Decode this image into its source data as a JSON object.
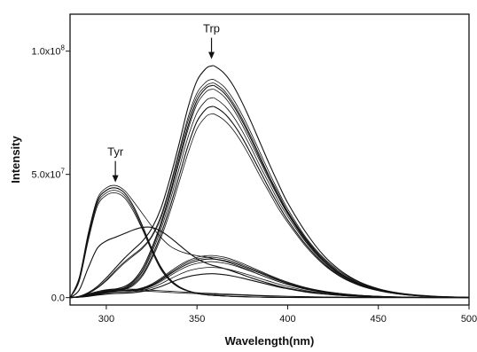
{
  "chart_data": {
    "type": "line",
    "title": "",
    "xlabel": "Wavelength(nm)",
    "ylabel": "Intensity",
    "xlim": [
      280,
      500
    ],
    "ylim": [
      -3000000,
      115000000
    ],
    "grid": false,
    "legend": "none",
    "x_ticks": [
      {
        "value": 300,
        "label": "300"
      },
      {
        "value": 350,
        "label": "350"
      },
      {
        "value": 400,
        "label": "400"
      },
      {
        "value": 450,
        "label": "450"
      },
      {
        "value": 500,
        "label": "500"
      }
    ],
    "y_ticks": [
      {
        "value": 0,
        "label": "0.0"
      },
      {
        "value": 50000000,
        "label": "5.0x10",
        "exp": "7"
      },
      {
        "value": 100000000,
        "label": "1.0x10",
        "exp": "8"
      }
    ],
    "x": [
      280,
      285,
      290,
      295,
      300,
      305,
      310,
      315,
      320,
      325,
      330,
      335,
      340,
      345,
      350,
      355,
      358,
      360,
      365,
      370,
      375,
      380,
      385,
      390,
      395,
      400,
      410,
      420,
      430,
      440,
      450,
      460,
      470,
      480,
      490,
      500
    ],
    "annotations": [
      {
        "text": "Tyr",
        "x": 305,
        "y": 45000000
      },
      {
        "text": "Trp",
        "x": 358,
        "y": 95000000
      }
    ],
    "series": [
      {
        "values": [
          0,
          500000,
          2000000,
          4500000,
          8000000,
          12000000,
          16000000,
          19500000,
          23000000,
          28000000,
          36000000,
          48000000,
          62000000,
          77000000,
          88000000,
          93000000,
          94000000,
          93800000,
          91000000,
          86000000,
          79000000,
          71000000,
          62500000,
          54000000,
          46000000,
          38500000,
          26500000,
          17000000,
          10500000,
          6200000,
          3600000,
          2000000,
          1100000,
          600000,
          300000,
          100000
        ]
      },
      {
        "values": [
          0,
          500000,
          1800000,
          4000000,
          7200000,
          11000000,
          14500000,
          17500000,
          20500000,
          25000000,
          33000000,
          45000000,
          59000000,
          73000000,
          83000000,
          87500000,
          88500000,
          88200000,
          85500000,
          80500000,
          74000000,
          66500000,
          58500000,
          50500000,
          43000000,
          36000000,
          24500000,
          16000000,
          10000000,
          6000000,
          3400000,
          1900000,
          1000000,
          550000,
          280000,
          100000
        ]
      },
      {
        "values": [
          0,
          400000,
          1700000,
          3800000,
          6800000,
          10500000,
          14000000,
          17000000,
          20000000,
          24500000,
          32000000,
          44000000,
          58000000,
          71500000,
          81500000,
          86000000,
          87000000,
          86800000,
          84000000,
          79000000,
          72500000,
          65000000,
          57000000,
          49000000,
          42000000,
          35000000,
          24000000,
          15500000,
          9500000,
          5700000,
          3300000,
          1800000,
          1000000,
          500000,
          250000,
          100000
        ]
      },
      {
        "values": [
          0,
          300000,
          1000000,
          2000000,
          3000000,
          3500000,
          4500000,
          7000000,
          12000000,
          20000000,
          30000000,
          42000000,
          56000000,
          69500000,
          80000000,
          85000000,
          86000000,
          85800000,
          83000000,
          78000000,
          71500000,
          64000000,
          56000000,
          48500000,
          41000000,
          34500000,
          23500000,
          15000000,
          9200000,
          5500000,
          3200000,
          1800000,
          950000,
          500000,
          250000,
          100000
        ]
      },
      {
        "values": [
          0,
          300000,
          900000,
          1800000,
          2600000,
          3200000,
          4000000,
          6500000,
          11000000,
          19000000,
          29000000,
          41000000,
          54500000,
          68000000,
          78500000,
          83500000,
          84500000,
          84300000,
          81500000,
          76500000,
          70000000,
          62500000,
          55000000,
          47500000,
          40500000,
          34000000,
          23000000,
          14800000,
          9000000,
          5400000,
          3100000,
          1700000,
          900000,
          480000,
          240000,
          100000
        ]
      },
      {
        "values": [
          0,
          300000,
          800000,
          1600000,
          2400000,
          3000000,
          3800000,
          6000000,
          10500000,
          18000000,
          27500000,
          39000000,
          52000000,
          65000000,
          75000000,
          80000000,
          81000000,
          80800000,
          78000000,
          73500000,
          67500000,
          60500000,
          53000000,
          46000000,
          39000000,
          33000000,
          22500000,
          14400000,
          8800000,
          5200000,
          3000000,
          1700000,
          900000,
          460000,
          230000,
          100000
        ]
      },
      {
        "values": [
          0,
          200000,
          700000,
          1400000,
          2200000,
          2800000,
          3500000,
          5500000,
          9500000,
          16500000,
          25500000,
          36500000,
          49000000,
          61500000,
          71500000,
          76500000,
          77500000,
          77300000,
          74800000,
          70500000,
          64800000,
          58000000,
          51000000,
          44000000,
          37500000,
          31500000,
          21500000,
          13800000,
          8400000,
          5000000,
          2900000,
          1600000,
          850000,
          440000,
          220000,
          100000
        ]
      },
      {
        "values": [
          0,
          200000,
          600000,
          1200000,
          2000000,
          2600000,
          3300000,
          5000000,
          8800000,
          15500000,
          24000000,
          34500000,
          46500000,
          58500000,
          68500000,
          73500000,
          74500000,
          74300000,
          72000000,
          68000000,
          62500000,
          56000000,
          49000000,
          42500000,
          36000000,
          30500000,
          20800000,
          13300000,
          8100000,
          4800000,
          2800000,
          1550000,
          820000,
          420000,
          210000,
          100000
        ]
      },
      {
        "values": [
          0,
          8000000,
          26000000,
          40000000,
          44500000,
          45500000,
          43500000,
          39000000,
          34000000,
          29000000,
          24500000,
          21000000,
          19000000,
          17800000,
          17000000,
          16500000,
          16000000,
          15600000,
          14800000,
          13600000,
          12200000,
          10700000,
          9200000,
          7800000,
          6500000,
          5300000,
          3400000,
          2100000,
          1200000,
          700000,
          400000,
          220000,
          120000,
          60000,
          30000,
          0
        ]
      },
      {
        "values": [
          0,
          7500000,
          25000000,
          39000000,
          43500000,
          44500000,
          42500000,
          37000000,
          29000000,
          20000000,
          12500000,
          7500000,
          4500000,
          2800000,
          1800000,
          1200000,
          1000000,
          900000,
          700000,
          500000,
          380000,
          280000,
          200000,
          140000,
          100000,
          70000,
          40000,
          20000,
          10000,
          5000,
          2000,
          1000,
          500,
          200,
          100,
          0
        ]
      },
      {
        "values": [
          0,
          7000000,
          24000000,
          38000000,
          42500000,
          43500000,
          41500000,
          36000000,
          28000000,
          19500000,
          12000000,
          7200000,
          4300000,
          2700000,
          1700000,
          1150000,
          950000,
          850000,
          650000,
          480000,
          360000,
          260000,
          190000,
          130000,
          95000,
          65000,
          35000,
          18000,
          9000,
          4500,
          2000,
          1000,
          500,
          200,
          100,
          0
        ]
      },
      {
        "values": [
          0,
          6500000,
          23000000,
          37000000,
          41500000,
          42500000,
          40500000,
          35000000,
          27500000,
          19000000,
          11500000,
          6900000,
          4100000,
          2600000,
          1650000,
          1100000,
          900000,
          800000,
          620000,
          460000,
          340000,
          250000,
          180000,
          125000,
          90000,
          60000,
          33000,
          17000,
          8500,
          4000,
          2000,
          1000,
          500,
          200,
          100,
          0
        ]
      },
      {
        "values": [
          0,
          3000000,
          12000000,
          20000000,
          23000000,
          24500000,
          26000000,
          27500000,
          28500000,
          28500000,
          27000000,
          24500000,
          21500000,
          18500000,
          15800000,
          14000000,
          13200000,
          12800000,
          11800000,
          10600000,
          9300000,
          8000000,
          6800000,
          5700000,
          4700000,
          3800000,
          2500000,
          1500000,
          900000,
          500000,
          300000,
          150000,
          80000,
          40000,
          20000,
          0
        ]
      },
      {
        "values": [
          0,
          300000,
          1000000,
          2000000,
          2800000,
          3000000,
          3000000,
          3200000,
          4000000,
          5500000,
          7800000,
          10500000,
          13000000,
          15000000,
          16300000,
          17000000,
          17100000,
          17000000,
          16400000,
          15300000,
          13900000,
          12300000,
          10700000,
          9100000,
          7600000,
          6300000,
          4100000,
          2600000,
          1600000,
          950000,
          550000,
          300000,
          160000,
          80000,
          40000,
          0
        ]
      },
      {
        "values": [
          0,
          300000,
          900000,
          1800000,
          2600000,
          2900000,
          2900000,
          3100000,
          3800000,
          5200000,
          7400000,
          10000000,
          12400000,
          14400000,
          15600000,
          16300000,
          16400000,
          16300000,
          15700000,
          14700000,
          13300000,
          11800000,
          10300000,
          8800000,
          7300000,
          6000000,
          3900000,
          2500000,
          1550000,
          900000,
          520000,
          290000,
          150000,
          75000,
          35000,
          0
        ]
      },
      {
        "values": [
          0,
          300000,
          800000,
          1600000,
          2400000,
          2800000,
          2800000,
          3000000,
          3600000,
          4900000,
          7000000,
          9500000,
          11800000,
          13700000,
          14900000,
          15600000,
          15700000,
          15600000,
          15000000,
          14100000,
          12800000,
          11300000,
          9900000,
          8400000,
          7000000,
          5800000,
          3750000,
          2400000,
          1500000,
          870000,
          500000,
          280000,
          145000,
          70000,
          35000,
          0
        ]
      },
      {
        "values": [
          0,
          200000,
          700000,
          1400000,
          2200000,
          2600000,
          2700000,
          2900000,
          3400000,
          4600000,
          6500000,
          8800000,
          11000000,
          12800000,
          13900000,
          14500000,
          14600000,
          14500000,
          14000000,
          13100000,
          11900000,
          10600000,
          9200000,
          7800000,
          6500000,
          5400000,
          3500000,
          2200000,
          1400000,
          820000,
          470000,
          260000,
          135000,
          65000,
          30000,
          0
        ]
      },
      {
        "values": [
          0,
          200000,
          600000,
          1200000,
          1800000,
          2200000,
          2300000,
          2500000,
          3000000,
          4000000,
          5600000,
          7500000,
          9300000,
          10800000,
          11700000,
          12200000,
          12300000,
          12200000,
          11800000,
          11000000,
          10000000,
          8900000,
          7700000,
          6600000,
          5500000,
          4500000,
          2900000,
          1850000,
          1150000,
          680000,
          390000,
          220000,
          110000,
          55000,
          25000,
          0
        ]
      },
      {
        "values": [
          0,
          200000,
          500000,
          1000000,
          1400000,
          1700000,
          1800000,
          2000000,
          2500000,
          3300000,
          4500000,
          6000000,
          7400000,
          8500000,
          9200000,
          9600000,
          9700000,
          9650000,
          9300000,
          8700000,
          7900000,
          7000000,
          6100000,
          5200000,
          4300000,
          3600000,
          2300000,
          1450000,
          900000,
          530000,
          310000,
          170000,
          90000,
          45000,
          20000,
          0
        ]
      },
      {
        "values": [
          0,
          500000,
          1500000,
          2500000,
          3200000,
          3500000,
          3500000,
          3400000,
          3200000,
          3000000,
          2800000,
          2600000,
          2400000,
          2200000,
          2000000,
          1800000,
          1700000,
          1650000,
          1500000,
          1350000,
          1200000,
          1050000,
          900000,
          780000,
          660000,
          560000,
          400000,
          280000,
          190000,
          120000,
          80000,
          50000,
          30000,
          15000,
          8000,
          0
        ]
      },
      {
        "values": [
          0,
          400000,
          1300000,
          2200000,
          2800000,
          3000000,
          3000000,
          2900000,
          2700000,
          2500000,
          2300000,
          2100000,
          1900000,
          1750000,
          1600000,
          1450000,
          1380000,
          1330000,
          1200000,
          1080000,
          960000,
          840000,
          720000,
          620000,
          530000,
          450000,
          320000,
          220000,
          150000,
          100000,
          65000,
          40000,
          25000,
          12000,
          6000,
          0
        ]
      }
    ]
  }
}
